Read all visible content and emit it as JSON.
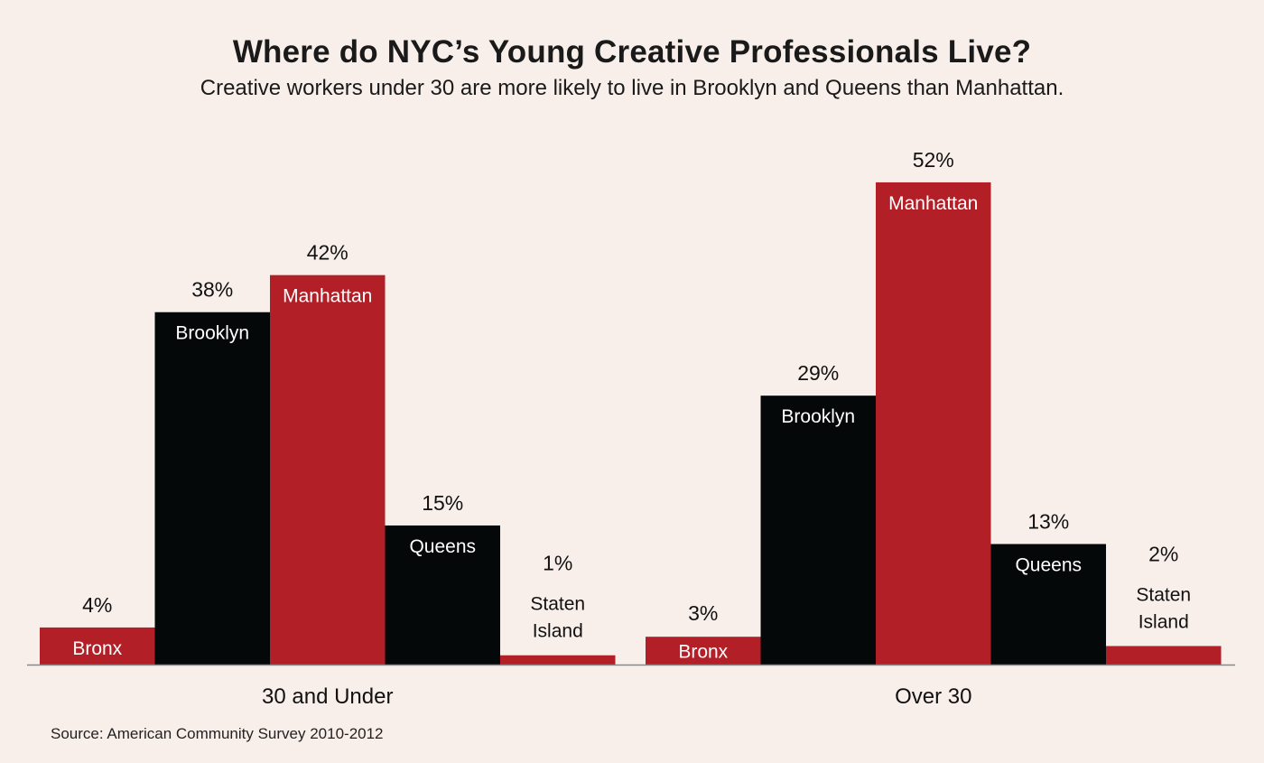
{
  "chart_data": {
    "type": "bar",
    "title": "Where do NYC’s Young Creative Professionals Live?",
    "subtitle": "Creative workers under 30 are more likely to live in Brooklyn and Queens than Manhattan.",
    "source": "Source: American Community Survey 2010-2012",
    "xlabel": "",
    "ylabel": "",
    "ylim": [
      0,
      54
    ],
    "grid": false,
    "legend": "none",
    "categories": [
      "Bronx",
      "Brooklyn",
      "Manhattan",
      "Queens",
      "Staten Island"
    ],
    "groups": [
      {
        "name": "30 and Under",
        "bars": [
          {
            "label": "Bronx",
            "value": 4,
            "display": "4%",
            "color": "#b31f26"
          },
          {
            "label": "Brooklyn",
            "value": 38,
            "display": "38%",
            "color": "#050808"
          },
          {
            "label": "Manhattan",
            "value": 42,
            "display": "42%",
            "color": "#b31f26"
          },
          {
            "label": "Queens",
            "value": 15,
            "display": "15%",
            "color": "#050808"
          },
          {
            "label": "Staten Island",
            "label_lines": [
              "Staten",
              "Island"
            ],
            "value": 1,
            "display": "1%",
            "color": "#b31f26"
          }
        ]
      },
      {
        "name": "Over 30",
        "bars": [
          {
            "label": "Bronx",
            "value": 3,
            "display": "3%",
            "color": "#b31f26"
          },
          {
            "label": "Brooklyn",
            "value": 29,
            "display": "29%",
            "color": "#050808"
          },
          {
            "label": "Manhattan",
            "value": 52,
            "display": "52%",
            "color": "#b31f26"
          },
          {
            "label": "Queens",
            "value": 13,
            "display": "13%",
            "color": "#050808"
          },
          {
            "label": "Staten Island",
            "label_lines": [
              "Staten",
              "Island"
            ],
            "value": 2,
            "display": "2%",
            "color": "#b31f26"
          }
        ]
      }
    ],
    "axis_color": "#888888"
  }
}
